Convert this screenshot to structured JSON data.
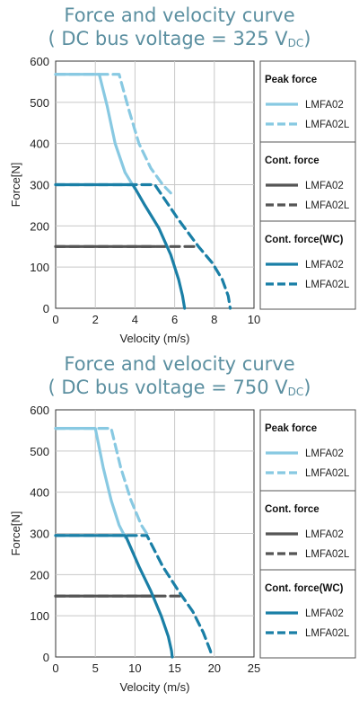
{
  "colors": {
    "peak": "#88c9e2",
    "cont": "#555555",
    "wc": "#1a7fa6",
    "title": "#5b8fa0",
    "grid": "#c8c8c8"
  },
  "chart_data": [
    {
      "type": "line",
      "title": "Force and velocity curve",
      "subtitle_prefix": "( DC bus voltage = 325 V",
      "subtitle_sub": "DC",
      "subtitle_suffix": ")",
      "xlabel": "Velocity (m/s)",
      "ylabel": "Force[N]",
      "xlim": [
        0,
        10
      ],
      "ylim": [
        0,
        600
      ],
      "xticks": [
        0,
        2,
        4,
        6,
        8,
        10
      ],
      "yticks": [
        0,
        100,
        200,
        300,
        400,
        500,
        600
      ],
      "grid": true,
      "legend_position": "right",
      "legend_groups": [
        {
          "heading": "Peak force",
          "items": [
            {
              "label": "LMFA02",
              "group": "peak",
              "dashed": false
            },
            {
              "label": "LMFA02L",
              "group": "peak",
              "dashed": true
            }
          ]
        },
        {
          "heading": "Cont. force",
          "items": [
            {
              "label": "LMFA02",
              "group": "cont",
              "dashed": false
            },
            {
              "label": "LMFA02L",
              "group": "cont",
              "dashed": true
            }
          ]
        },
        {
          "heading": "Cont. force(WC)",
          "items": [
            {
              "label": "LMFA02",
              "group": "wc",
              "dashed": false
            },
            {
              "label": "LMFA02L",
              "group": "wc",
              "dashed": true
            }
          ]
        }
      ],
      "series": [
        {
          "group": "peak",
          "dashed": false,
          "points": [
            [
              0,
              568
            ],
            [
              2.2,
              568
            ],
            [
              2.6,
              490
            ],
            [
              3.0,
              400
            ],
            [
              3.5,
              330
            ],
            [
              4.0,
              290
            ]
          ]
        },
        {
          "group": "peak",
          "dashed": true,
          "points": [
            [
              0,
              568
            ],
            [
              3.2,
              568
            ],
            [
              3.7,
              480
            ],
            [
              4.2,
              400
            ],
            [
              4.8,
              340
            ],
            [
              5.4,
              300
            ],
            [
              5.8,
              280
            ]
          ]
        },
        {
          "group": "cont",
          "dashed": false,
          "points": [
            [
              0,
              150
            ],
            [
              5.0,
              150
            ]
          ]
        },
        {
          "group": "cont",
          "dashed": true,
          "points": [
            [
              0,
              150
            ],
            [
              7.0,
              150
            ]
          ]
        },
        {
          "group": "wc",
          "dashed": false,
          "points": [
            [
              0,
              300
            ],
            [
              3.9,
              300
            ],
            [
              4.5,
              250
            ],
            [
              5.2,
              195
            ],
            [
              5.8,
              130
            ],
            [
              6.2,
              70
            ],
            [
              6.4,
              30
            ],
            [
              6.5,
              0
            ]
          ]
        },
        {
          "group": "wc",
          "dashed": true,
          "points": [
            [
              0,
              300
            ],
            [
              5.0,
              300
            ],
            [
              6.2,
              215
            ],
            [
              7.2,
              150
            ],
            [
              7.9,
              110
            ],
            [
              8.4,
              70
            ],
            [
              8.7,
              30
            ],
            [
              8.8,
              0
            ]
          ]
        }
      ]
    },
    {
      "type": "line",
      "title": "Force and velocity curve",
      "subtitle_prefix": "( DC bus voltage = 750 V",
      "subtitle_sub": "DC",
      "subtitle_suffix": ")",
      "xlabel": "Velocity (m/s)",
      "ylabel": "Force[N]",
      "xlim": [
        0,
        25
      ],
      "ylim": [
        0,
        600
      ],
      "xticks": [
        0,
        5,
        10,
        15,
        20,
        25
      ],
      "yticks": [
        0,
        100,
        200,
        300,
        400,
        500,
        600
      ],
      "grid": true,
      "legend_position": "right",
      "legend_groups": [
        {
          "heading": "Peak force",
          "items": [
            {
              "label": "LMFA02",
              "group": "peak",
              "dashed": false
            },
            {
              "label": "LMFA02L",
              "group": "peak",
              "dashed": true
            }
          ]
        },
        {
          "heading": "Cont. force",
          "items": [
            {
              "label": "LMFA02",
              "group": "cont",
              "dashed": false
            },
            {
              "label": "LMFA02L",
              "group": "cont",
              "dashed": true
            }
          ]
        },
        {
          "heading": "Cont. force(WC)",
          "items": [
            {
              "label": "LMFA02",
              "group": "wc",
              "dashed": false
            },
            {
              "label": "LMFA02L",
              "group": "wc",
              "dashed": true
            }
          ]
        }
      ],
      "series": [
        {
          "group": "peak",
          "dashed": false,
          "points": [
            [
              0,
              555
            ],
            [
              5.0,
              555
            ],
            [
              6.0,
              460
            ],
            [
              7.0,
              380
            ],
            [
              8.0,
              320
            ],
            [
              8.8,
              290
            ]
          ]
        },
        {
          "group": "peak",
          "dashed": true,
          "points": [
            [
              0,
              555
            ],
            [
              7.0,
              555
            ],
            [
              8.2,
              460
            ],
            [
              9.5,
              380
            ],
            [
              10.8,
              320
            ],
            [
              11.8,
              290
            ]
          ]
        },
        {
          "group": "cont",
          "dashed": false,
          "points": [
            [
              0,
              148
            ],
            [
              12.5,
              148
            ]
          ]
        },
        {
          "group": "cont",
          "dashed": true,
          "points": [
            [
              0,
              148
            ],
            [
              16.0,
              148
            ]
          ]
        },
        {
          "group": "wc",
          "dashed": false,
          "points": [
            [
              0,
              295
            ],
            [
              8.8,
              295
            ],
            [
              10.5,
              220
            ],
            [
              12.0,
              160
            ],
            [
              13.3,
              100
            ],
            [
              14.2,
              50
            ],
            [
              14.6,
              15
            ],
            [
              14.7,
              0
            ]
          ]
        },
        {
          "group": "wc",
          "dashed": true,
          "points": [
            [
              0,
              295
            ],
            [
              11.5,
              295
            ],
            [
              13.5,
              220
            ],
            [
              15.5,
              160
            ],
            [
              17.3,
              110
            ],
            [
              18.6,
              60
            ],
            [
              19.5,
              15
            ],
            [
              19.7,
              0
            ]
          ]
        }
      ]
    }
  ]
}
